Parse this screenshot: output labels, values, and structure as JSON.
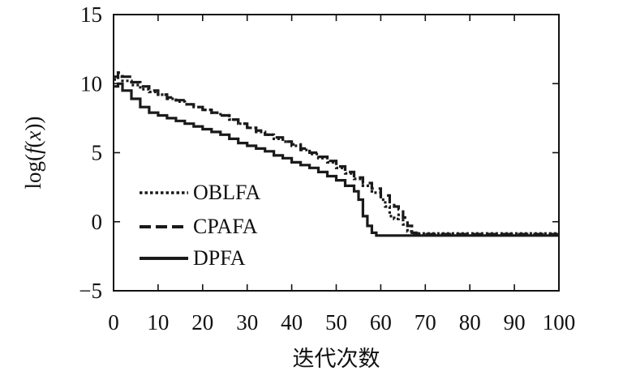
{
  "chart_data": {
    "type": "line",
    "title": "",
    "xlabel": "迭代次数",
    "ylabel_parts": [
      "log(",
      "f",
      "(",
      "x",
      "))"
    ],
    "xlim": [
      0,
      100
    ],
    "ylim": [
      -5,
      15
    ],
    "xticks": [
      "0",
      "10",
      "20",
      "30",
      "40",
      "50",
      "60",
      "70",
      "80",
      "90",
      "100"
    ],
    "yticks": [
      "−5",
      "0",
      "5",
      "10",
      "15"
    ],
    "xtick_values": [
      0,
      10,
      20,
      30,
      40,
      50,
      60,
      70,
      80,
      90,
      100
    ],
    "ytick_values": [
      -5,
      0,
      5,
      10,
      15
    ],
    "grid": false,
    "legend_position": "bottom-left",
    "series": [
      {
        "name": "OBLFA",
        "style": "dotted",
        "points": [
          [
            0,
            10.3
          ],
          [
            1,
            10.5
          ],
          [
            2,
            10.2
          ],
          [
            4,
            9.9
          ],
          [
            6,
            9.6
          ],
          [
            8,
            9.4
          ],
          [
            10,
            9.2
          ],
          [
            12,
            8.9
          ],
          [
            14,
            8.7
          ],
          [
            16,
            8.5
          ],
          [
            18,
            8.3
          ],
          [
            20,
            8.1
          ],
          [
            22,
            7.9
          ],
          [
            24,
            7.7
          ],
          [
            26,
            7.4
          ],
          [
            28,
            7.1
          ],
          [
            30,
            6.8
          ],
          [
            32,
            6.5
          ],
          [
            34,
            6.3
          ],
          [
            36,
            6.0
          ],
          [
            38,
            5.8
          ],
          [
            40,
            5.5
          ],
          [
            42,
            5.2
          ],
          [
            44,
            4.9
          ],
          [
            46,
            4.6
          ],
          [
            48,
            4.3
          ],
          [
            50,
            3.9
          ],
          [
            52,
            3.5
          ],
          [
            54,
            3.1
          ],
          [
            56,
            2.6
          ],
          [
            58,
            2.1
          ],
          [
            60,
            1.6
          ],
          [
            61,
            1.1
          ],
          [
            62,
            0.4
          ],
          [
            63,
            0.2
          ],
          [
            64,
            0.5
          ],
          [
            65,
            -0.2
          ],
          [
            66,
            -0.7
          ],
          [
            67,
            -0.85
          ],
          [
            70,
            -0.85
          ],
          [
            80,
            -0.85
          ],
          [
            90,
            -0.85
          ],
          [
            100,
            -0.85
          ]
        ]
      },
      {
        "name": "CPAFA",
        "style": "dashed",
        "points": [
          [
            0,
            10.5
          ],
          [
            1,
            10.8
          ],
          [
            2,
            10.5
          ],
          [
            4,
            10.1
          ],
          [
            6,
            9.8
          ],
          [
            8,
            9.5
          ],
          [
            10,
            9.2
          ],
          [
            12,
            9.0
          ],
          [
            14,
            8.8
          ],
          [
            16,
            8.5
          ],
          [
            18,
            8.3
          ],
          [
            20,
            8.1
          ],
          [
            22,
            7.9
          ],
          [
            24,
            7.7
          ],
          [
            26,
            7.4
          ],
          [
            28,
            7.1
          ],
          [
            30,
            6.8
          ],
          [
            32,
            6.6
          ],
          [
            34,
            6.3
          ],
          [
            36,
            6.1
          ],
          [
            38,
            5.8
          ],
          [
            40,
            5.6
          ],
          [
            42,
            5.3
          ],
          [
            44,
            5.0
          ],
          [
            46,
            4.7
          ],
          [
            48,
            4.4
          ],
          [
            50,
            4.0
          ],
          [
            52,
            3.6
          ],
          [
            54,
            3.2
          ],
          [
            56,
            2.8
          ],
          [
            58,
            2.4
          ],
          [
            60,
            1.9
          ],
          [
            62,
            1.3
          ],
          [
            63,
            1.1
          ],
          [
            64,
            0.9
          ],
          [
            65,
            0.3
          ],
          [
            66,
            -0.3
          ],
          [
            67,
            -0.8
          ],
          [
            68,
            -0.9
          ],
          [
            70,
            -0.9
          ],
          [
            80,
            -0.9
          ],
          [
            90,
            -0.9
          ],
          [
            100,
            -0.9
          ]
        ]
      },
      {
        "name": "DPFA",
        "style": "solid",
        "points": [
          [
            0,
            9.8
          ],
          [
            1,
            10.0
          ],
          [
            2,
            9.5
          ],
          [
            4,
            8.9
          ],
          [
            6,
            8.3
          ],
          [
            8,
            7.9
          ],
          [
            10,
            7.7
          ],
          [
            12,
            7.5
          ],
          [
            14,
            7.3
          ],
          [
            16,
            7.1
          ],
          [
            18,
            6.9
          ],
          [
            20,
            6.7
          ],
          [
            22,
            6.5
          ],
          [
            24,
            6.3
          ],
          [
            26,
            6.0
          ],
          [
            28,
            5.7
          ],
          [
            30,
            5.5
          ],
          [
            32,
            5.3
          ],
          [
            34,
            5.1
          ],
          [
            36,
            4.8
          ],
          [
            38,
            4.6
          ],
          [
            40,
            4.3
          ],
          [
            42,
            4.1
          ],
          [
            44,
            3.9
          ],
          [
            46,
            3.6
          ],
          [
            48,
            3.3
          ],
          [
            50,
            3.0
          ],
          [
            52,
            2.6
          ],
          [
            54,
            2.2
          ],
          [
            55,
            1.6
          ],
          [
            56,
            0.4
          ],
          [
            57,
            -0.3
          ],
          [
            58,
            -0.8
          ],
          [
            59,
            -1.0
          ],
          [
            60,
            -1.0
          ],
          [
            70,
            -1.0
          ],
          [
            80,
            -1.0
          ],
          [
            90,
            -1.0
          ],
          [
            100,
            -1.0
          ]
        ]
      }
    ]
  }
}
